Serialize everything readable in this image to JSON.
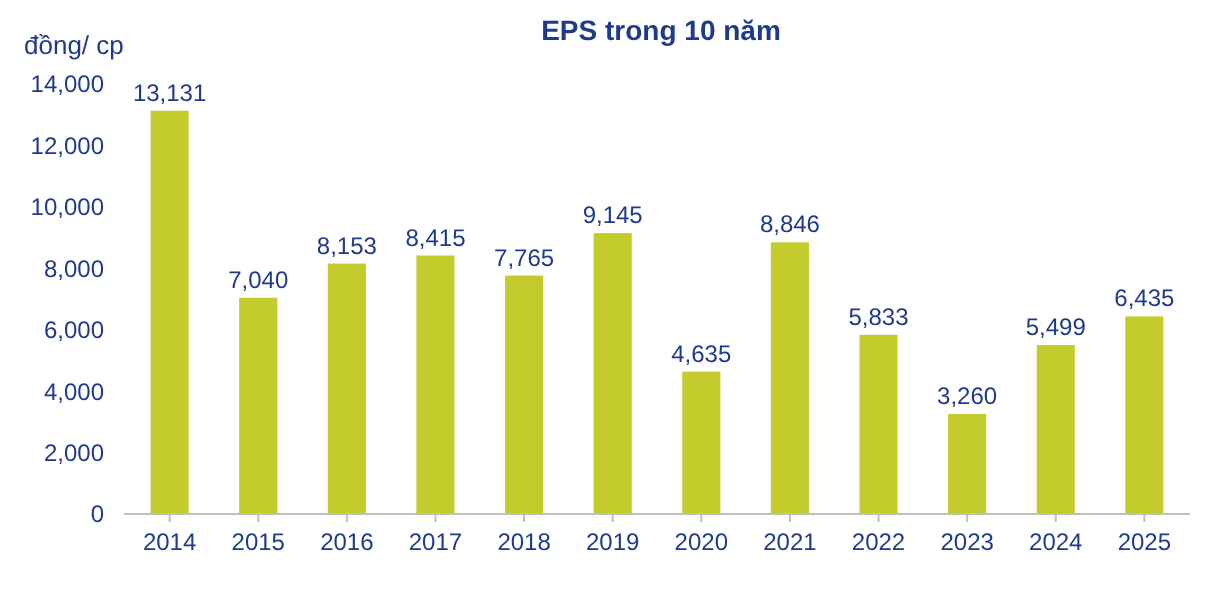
{
  "chart_data": {
    "type": "bar",
    "title": "EPS trong 10 năm",
    "ylabel": "đồng/ cp",
    "categories": [
      "2014",
      "2015",
      "2016",
      "2017",
      "2018",
      "2019",
      "2020",
      "2021",
      "2022",
      "2023",
      "2024",
      "2025"
    ],
    "values": [
      13131,
      7040,
      8153,
      8415,
      7765,
      9145,
      4635,
      8846,
      5833,
      3260,
      5499,
      6435
    ],
    "color": "#c3cc2c",
    "ylim": [
      0,
      14000
    ],
    "yticks": [
      {
        "value": 0,
        "label": "0"
      },
      {
        "value": 2000,
        "label": "2,000"
      },
      {
        "value": 4000,
        "label": "4,000"
      },
      {
        "value": 6000,
        "label": "6,000"
      },
      {
        "value": 8000,
        "label": "8,000"
      },
      {
        "value": 10000,
        "label": "10,000"
      },
      {
        "value": 12000,
        "label": "12,000"
      },
      {
        "value": 14000,
        "label": "14,000"
      }
    ],
    "value_labels": [
      "13,131",
      "7,040",
      "8,153",
      "8,415",
      "7,765",
      "9,145",
      "4,635",
      "8,846",
      "5,833",
      "3,260",
      "5,499",
      "6,435"
    ]
  }
}
